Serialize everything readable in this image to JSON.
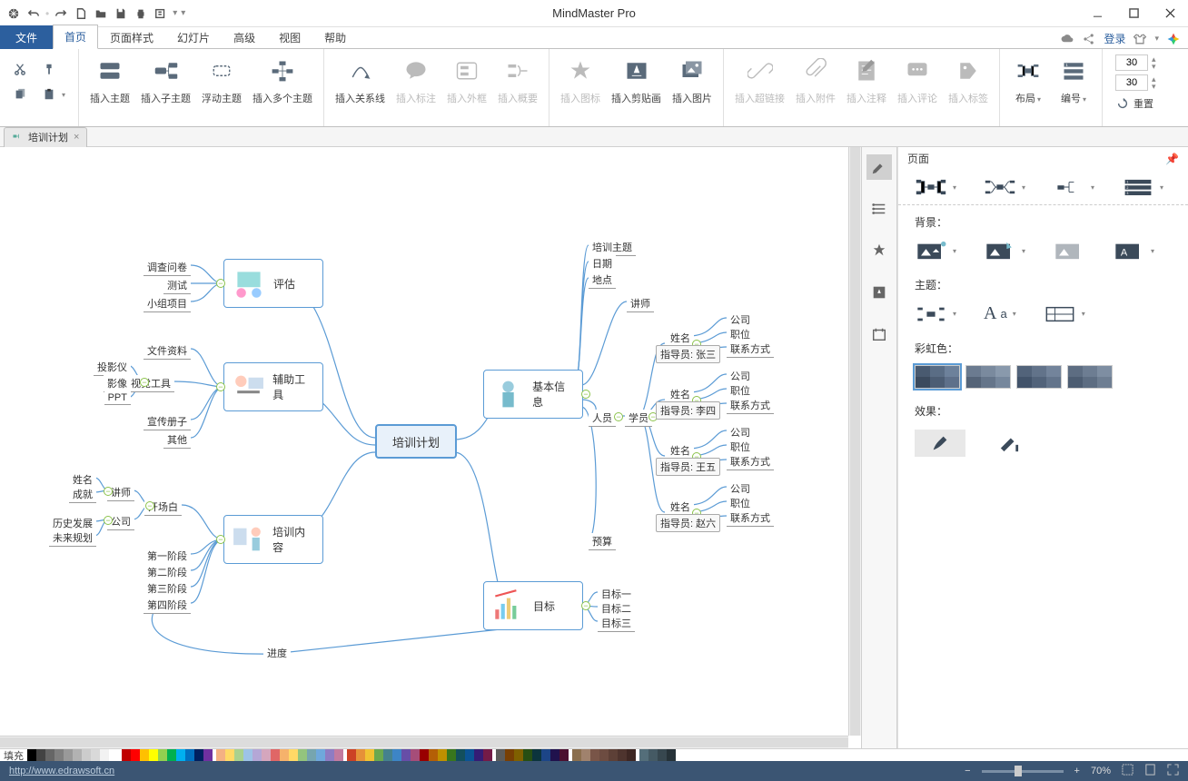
{
  "app": {
    "title": "MindMaster Pro"
  },
  "menu": {
    "tabs": [
      "文件",
      "首页",
      "页面样式",
      "幻灯片",
      "高级",
      "视图",
      "帮助"
    ],
    "active": 1,
    "login": "登录"
  },
  "ribbon": {
    "clipboard": [
      "剪切",
      "格式刷",
      "复制",
      "粘贴"
    ],
    "topics": [
      "插入主题",
      "插入子主题",
      "浮动主题",
      "插入多个主题"
    ],
    "insert1": [
      "插入关系线",
      "插入标注",
      "插入外框",
      "插入概要"
    ],
    "insert2": [
      "插入图标",
      "插入剪贴画",
      "插入图片"
    ],
    "insert3": [
      "插入超链接",
      "插入附件",
      "插入注释",
      "插入评论",
      "插入标签"
    ],
    "layout": {
      "layout": "布局",
      "number": "编号",
      "reset": "重置",
      "value": "30"
    }
  },
  "doctab": {
    "name": "培训计划"
  },
  "sidepanel": {
    "title": "页面",
    "sections": {
      "bg": "背景：",
      "theme": "主题：",
      "rainbow": "彩虹色：",
      "effect": "效果："
    }
  },
  "mindmap": {
    "central": "培训计划",
    "left": {
      "eval": {
        "label": "评估",
        "items": [
          "调查问卷",
          "测试",
          "小组项目"
        ]
      },
      "tool": {
        "label": "辅助工具",
        "fileData": "文件资料",
        "visual": {
          "label": "视觉工具",
          "items": [
            "投影仪",
            "影像",
            "PPT"
          ]
        },
        "booklet": "宣传册子",
        "other": "其他"
      },
      "content": {
        "label": "培训内容",
        "opening": {
          "label": "开场白",
          "lecturer": {
            "label": "讲师",
            "items": [
              "姓名",
              "成就"
            ]
          },
          "company": {
            "label": "公司",
            "items": [
              "历史发展",
              "未来规划"
            ]
          }
        },
        "stages": [
          "第一阶段",
          "第二阶段",
          "第三阶段",
          "第四阶段"
        ],
        "progress": "进度"
      }
    },
    "right": {
      "basic": {
        "label": "基本信息",
        "top": [
          "培训主题",
          "日期",
          "地点"
        ],
        "lecturer": "讲师",
        "people": {
          "label": "人员",
          "stu": "学员",
          "persons": [
            {
              "box": "指导员: 张三",
              "name": "姓名",
              "fields": [
                "公司",
                "职位",
                "联系方式"
              ]
            },
            {
              "box": "指导员: 李四",
              "name": "姓名",
              "fields": [
                "公司",
                "职位",
                "联系方式"
              ]
            },
            {
              "box": "指导员: 王五",
              "name": "姓名",
              "fields": [
                "公司",
                "职位",
                "联系方式"
              ]
            },
            {
              "box": "指导员: 赵六",
              "name": "姓名",
              "fields": [
                "公司",
                "职位",
                "联系方式"
              ]
            }
          ]
        },
        "budget": "预算"
      },
      "goal": {
        "label": "目标",
        "items": [
          "目标一",
          "目标二",
          "目标三"
        ]
      }
    }
  },
  "status": {
    "url": "http://www.edrawsoft.cn",
    "zoom": "70%",
    "fill": "填充"
  },
  "colors": {
    "swatches1": [
      [
        "#495a70",
        "#5a6d85",
        "#6d819b"
      ],
      [
        "#3b4a5e",
        "#4c5d74",
        "#5e708a"
      ]
    ],
    "swatches2": [
      [
        "#6b7b90",
        "#7a8a9e",
        "#8999ac"
      ],
      [
        "#556478",
        "#65758a",
        "#76879c"
      ]
    ],
    "swatches3": [
      [
        "#52637a",
        "#62738a",
        "#73849b"
      ],
      [
        "#42536a",
        "#52637a",
        "#63748b"
      ]
    ],
    "swatches4": [
      [
        "#5d6d82",
        "#6d7d92",
        "#7e8ea2"
      ],
      [
        "#4d5d72",
        "#5d6d82",
        "#6e7e92"
      ]
    ],
    "bar": [
      "#000000",
      "#434343",
      "#666666",
      "#7f7f7f",
      "#999999",
      "#b2b2b2",
      "#cccccc",
      "#d9d9d9",
      "#f2f2f2",
      "#ffffff",
      "",
      "#c00000",
      "#ff0000",
      "#ffc000",
      "#ffff00",
      "#92d050",
      "#00b050",
      "#00b0f0",
      "#0070c0",
      "#002060",
      "#7030a0",
      "",
      "#f4b183",
      "#ffd966",
      "#a9d18e",
      "#9dc3e6",
      "#b4a7d6",
      "#d5a6bd",
      "#e06666",
      "#f6b26b",
      "#ffd966",
      "#93c47d",
      "#76a5af",
      "#6fa8dc",
      "#8e7cc3",
      "#c27ba0",
      "",
      "#cc4125",
      "#e69138",
      "#f1c232",
      "#6aa84f",
      "#45818e",
      "#3d85c6",
      "#674ea7",
      "#a64d79",
      "#990000",
      "#b45f06",
      "#bf9000",
      "#38761d",
      "#134f5c",
      "#0b5394",
      "#351c75",
      "#741b47",
      "",
      "#5b5b5b",
      "#783f04",
      "#7f6000",
      "#274e13",
      "#0c343d",
      "#1c4587",
      "#20124d",
      "#4c1130",
      "",
      "#8b6f4e",
      "#a0826d",
      "#795548",
      "#6d4c41",
      "#5d4037",
      "#4e342e",
      "#3e2723",
      "",
      "#546e7a",
      "#455a64",
      "#37474f",
      "#263238"
    ]
  }
}
